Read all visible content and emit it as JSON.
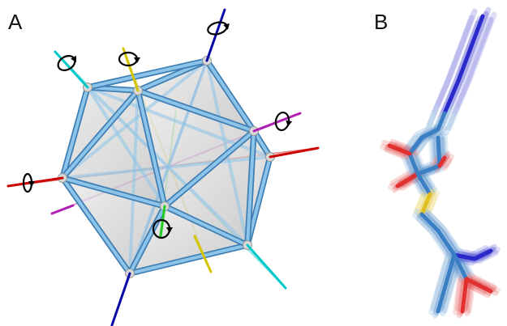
{
  "panels": {
    "a": {
      "label": "A"
    },
    "b": {
      "label": "B"
    }
  },
  "colors": {
    "background": "#ffffff",
    "edge_blue": "#5a9fd4",
    "edge_blue_light": "#8cc4ea",
    "vertex": "#d9d9d9",
    "face": "#c8c8c8",
    "axis_red": "#cc0000",
    "axis_navy": "#0a0aa8",
    "axis_cyan": "#00c8c8",
    "axis_yellow": "#d4c400",
    "axis_magenta": "#b020b0",
    "axis_green": "#22cc22",
    "atom_oxygen": "#e03030",
    "atom_nitrogen": "#2a2acc",
    "atom_sulfur": "#e0c020",
    "atom_carbon": "#3a7fc4",
    "rotation_marker": "#000000"
  },
  "icons": [
    "rotation-arrow-icon"
  ]
}
